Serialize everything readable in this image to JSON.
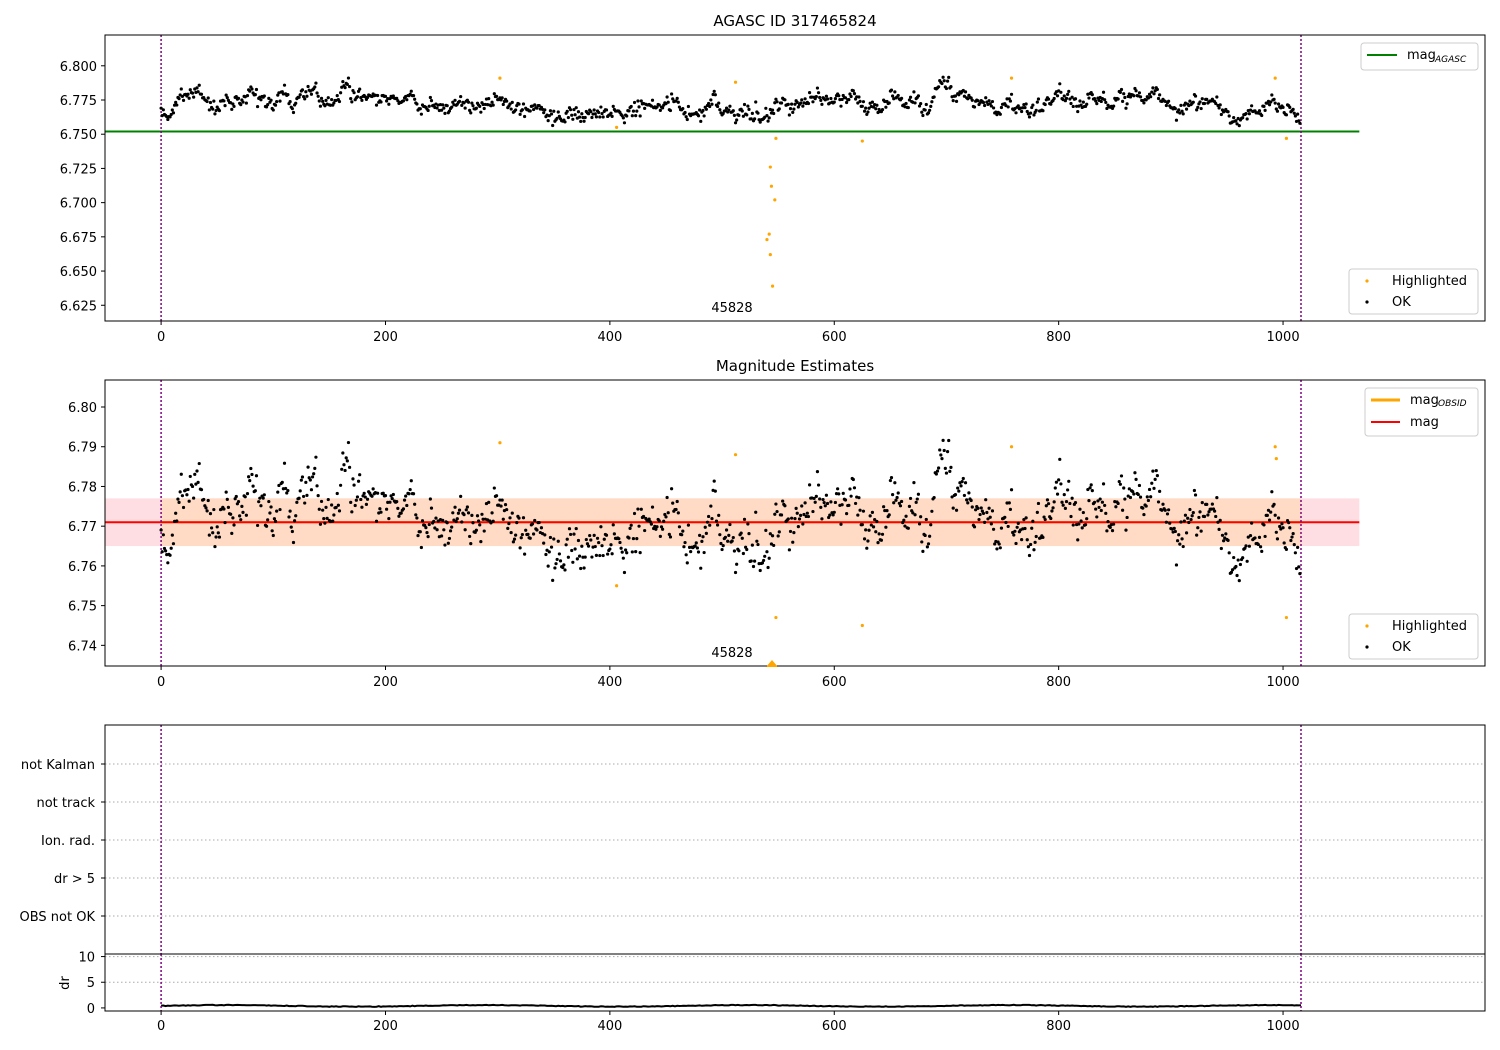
{
  "figure": {
    "colors": {
      "ok": "#000000",
      "highlighted": "#ffa500",
      "agasc_line": "#008000",
      "mag_line": "#ff0000",
      "obsid_line": "#ffa500",
      "band_fill": "#ffb6c1",
      "band_fill_inner": "#ffdab9",
      "obs_boundary": "#800080",
      "grid": "#aaaaaa"
    },
    "obs_boundaries": [
      0,
      1016
    ],
    "obsid_label": "45828"
  },
  "chart_data": [
    {
      "type": "scatter",
      "title": "AGASC ID 317465824",
      "xlim": [
        -50,
        1180
      ],
      "ylim": [
        6.6135,
        6.8225
      ],
      "x_ticks": [
        0,
        200,
        400,
        600,
        800,
        1000
      ],
      "y_ticks": [
        6.625,
        6.65,
        6.675,
        6.7,
        6.725,
        6.75,
        6.775,
        6.8
      ],
      "y_tick_labels": [
        "6.625",
        "6.650",
        "6.675",
        "6.700",
        "6.725",
        "6.750",
        "6.775",
        "6.800"
      ],
      "reference_lines": [
        {
          "name": "mag",
          "subscript": "AGASC",
          "y": 6.752,
          "x_range": [
            -50,
            1068
          ],
          "color": "#008000"
        }
      ],
      "highlighted_points": [
        [
          302,
          6.791
        ],
        [
          512,
          6.788
        ],
        [
          758,
          6.791
        ],
        [
          993,
          6.791
        ],
        [
          406,
          6.755
        ],
        [
          548,
          6.747
        ],
        [
          625,
          6.745
        ],
        [
          1003,
          6.747
        ],
        [
          543,
          6.726
        ],
        [
          544,
          6.712
        ],
        [
          547,
          6.702
        ],
        [
          542,
          6.677
        ],
        [
          540,
          6.673
        ],
        [
          543,
          6.662
        ],
        [
          545,
          6.639
        ]
      ],
      "legend_lines": [
        {
          "name": "mag",
          "subscript": "AGASC"
        }
      ],
      "legend_points": [
        "Highlighted",
        "OK"
      ]
    },
    {
      "type": "scatter",
      "title": "Magnitude Estimates",
      "xlim": [
        -50,
        1180
      ],
      "ylim": [
        6.7348,
        6.8068
      ],
      "x_ticks": [
        0,
        200,
        400,
        600,
        800,
        1000
      ],
      "y_ticks": [
        6.74,
        6.75,
        6.76,
        6.77,
        6.78,
        6.79,
        6.8
      ],
      "y_tick_labels": [
        "6.74",
        "6.75",
        "6.76",
        "6.77",
        "6.78",
        "6.79",
        "6.80"
      ],
      "reference_lines": [
        {
          "name": "mag",
          "subscript": "OBSID",
          "y": 6.771,
          "x_range": [
            -50,
            1068
          ],
          "color": "#ffa500"
        },
        {
          "name": "mag",
          "subscript": "",
          "y": 6.771,
          "x_range": [
            -50,
            1068
          ],
          "color": "#ff0000"
        }
      ],
      "band": {
        "y_low": 6.765,
        "y_high": 6.777,
        "x_range": [
          -50,
          1068
        ]
      },
      "highlighted_points": [
        [
          302,
          6.791
        ],
        [
          512,
          6.788
        ],
        [
          758,
          6.79
        ],
        [
          993,
          6.79
        ],
        [
          994,
          6.787
        ],
        [
          406,
          6.755
        ],
        [
          548,
          6.747
        ],
        [
          625,
          6.745
        ],
        [
          1003,
          6.747
        ]
      ],
      "legend_lines": [
        {
          "name": "mag",
          "subscript": "OBSID"
        },
        {
          "name": "mag",
          "subscript": ""
        }
      ],
      "legend_points": [
        "Highlighted",
        "OK"
      ]
    },
    {
      "type": "scatter",
      "title": "",
      "xlim": [
        -50,
        1180
      ],
      "flag_categories": [
        "not Kalman",
        "not track",
        "Ion. rad.",
        "dr > 5",
        "OBS not OK"
      ],
      "flag_points": []
    },
    {
      "type": "line",
      "title": "",
      "xlim": [
        -50,
        1180
      ],
      "ylabel": "dr",
      "y_ticks": [
        0,
        5,
        10
      ],
      "y_tick_labels": [
        "0",
        "5",
        "10"
      ],
      "ylim": [
        -0.6,
        10.5
      ],
      "x_ticks": [
        0,
        200,
        400,
        600,
        800,
        1000
      ],
      "series": [
        {
          "x_range": [
            0,
            1016
          ],
          "mean": 0.4,
          "amplitude": 0.25
        }
      ]
    }
  ]
}
